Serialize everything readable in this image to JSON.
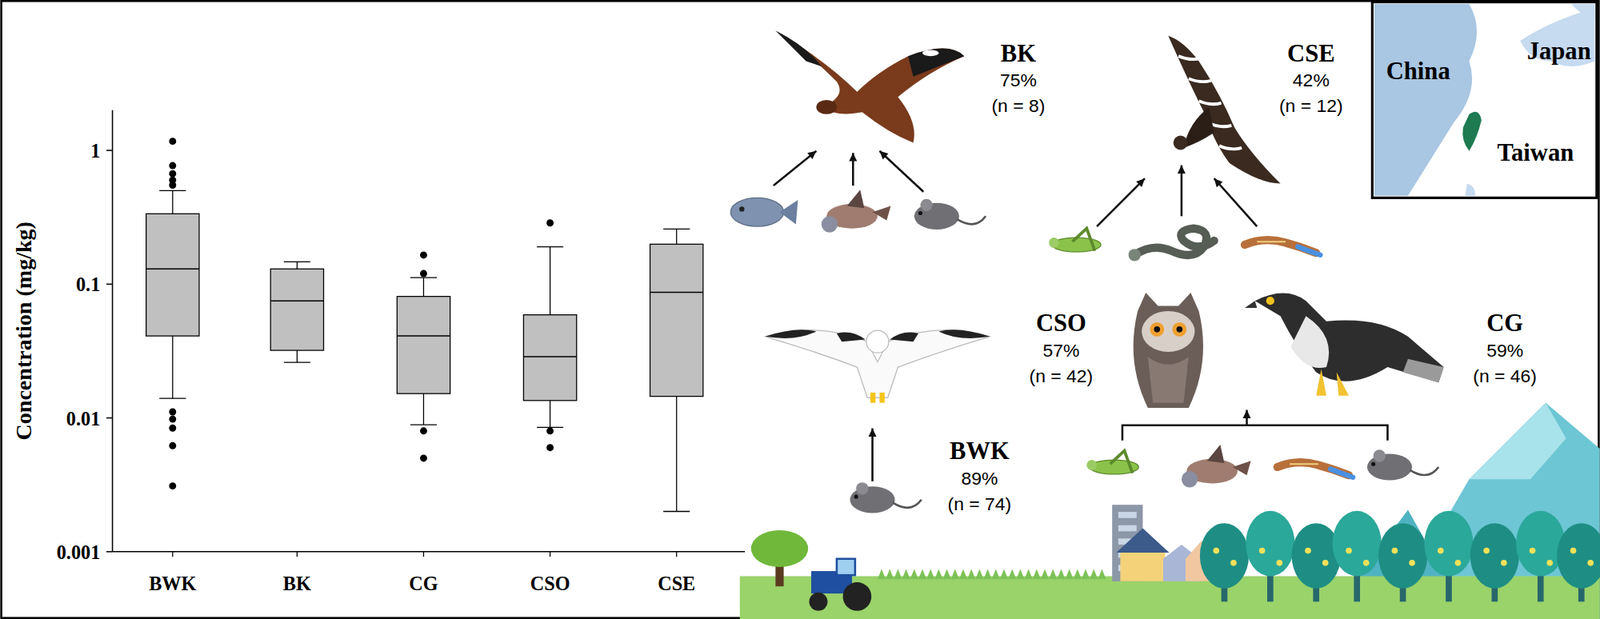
{
  "chart_data": {
    "type": "box",
    "y_label": "Concentration (mg/kg)",
    "categories": [
      "BWK",
      "BK",
      "CG",
      "CSO",
      "CSE"
    ],
    "boxes": [
      {
        "whisker_low": 0.014,
        "q1": 0.041,
        "median": 0.13,
        "q3": 0.336,
        "whisker_high": 0.5,
        "outliers": [
          1.17,
          0.77,
          0.67,
          0.6,
          0.55,
          0.0111,
          0.0098,
          0.0084,
          0.0062,
          0.0031
        ]
      },
      {
        "whisker_low": 0.026,
        "q1": 0.032,
        "median": 0.075,
        "q3": 0.13,
        "whisker_high": 0.147,
        "outliers": []
      },
      {
        "whisker_low": 0.0089,
        "q1": 0.0152,
        "median": 0.041,
        "q3": 0.081,
        "whisker_high": 0.112,
        "outliers": [
          0.12,
          0.165,
          0.008,
          0.005
        ]
      },
      {
        "whisker_low": 0.0085,
        "q1": 0.0135,
        "median": 0.0287,
        "q3": 0.059,
        "whisker_high": 0.19,
        "outliers": [
          0.287,
          0.008,
          0.006
        ]
      },
      {
        "whisker_low": 0.002,
        "q1": 0.0145,
        "median": 0.087,
        "q3": 0.199,
        "whisker_high": 0.258,
        "outliers": []
      }
    ],
    "ylim": [
      0.001,
      2
    ],
    "yticks": [
      0.001,
      0.01,
      0.1,
      1
    ],
    "log": "y",
    "color": "#c0c0c0"
  },
  "diagram": {
    "species": [
      {
        "code": "BK",
        "percent": "75%",
        "n": "(n = 8)"
      },
      {
        "code": "CSE",
        "percent": "42%",
        "n": "(n = 12)"
      },
      {
        "code": "CSO",
        "percent": "57%",
        "n": "(n = 42)"
      },
      {
        "code": "CG",
        "percent": "59%",
        "n": "(n = 46)"
      },
      {
        "code": "BWK",
        "percent": "89%",
        "n": "(n = 74)"
      }
    ],
    "map_labels": [
      "China",
      "Japan",
      "Taiwan"
    ]
  }
}
